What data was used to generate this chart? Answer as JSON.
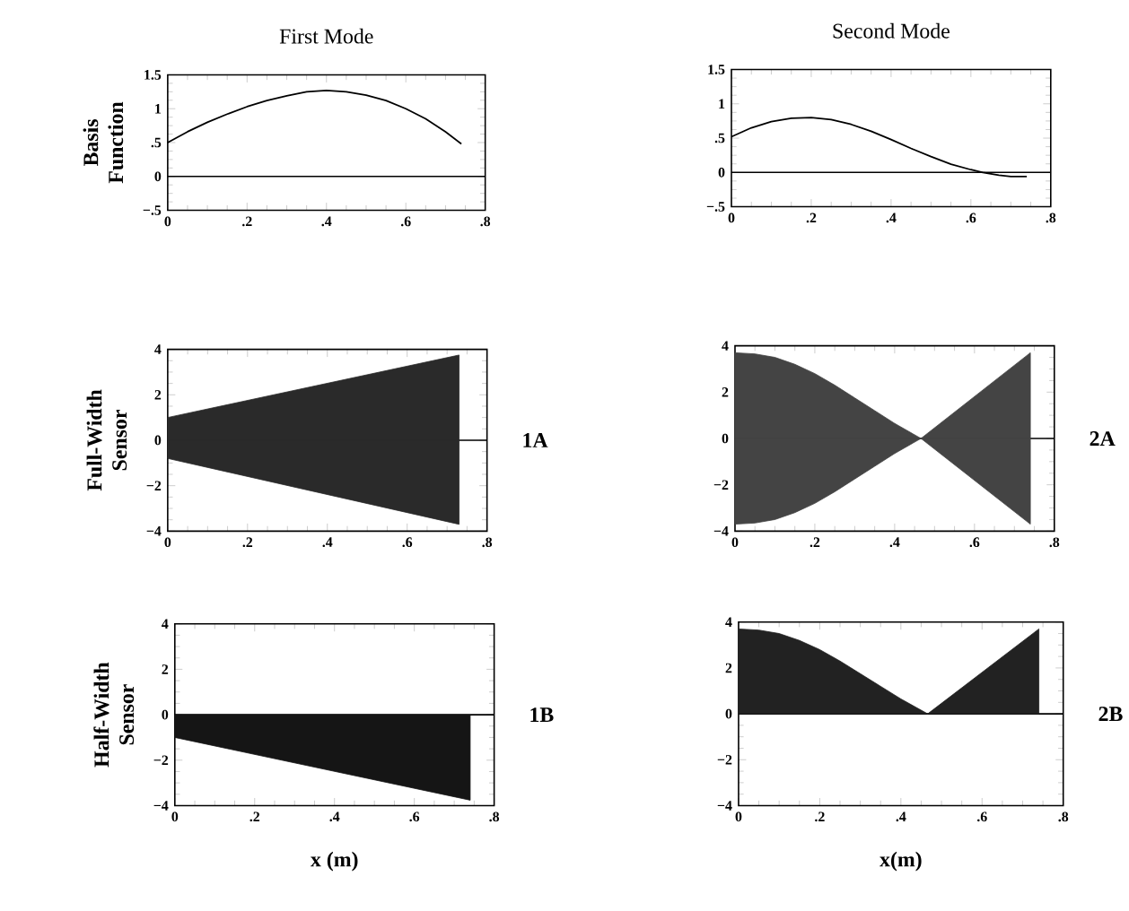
{
  "chart_data": [
    {
      "type": "line",
      "title": "First Mode",
      "ylabel": "Basis Function",
      "x": [
        0,
        0.05,
        0.1,
        0.15,
        0.2,
        0.25,
        0.3,
        0.35,
        0.4,
        0.45,
        0.5,
        0.55,
        0.6,
        0.65,
        0.7,
        0.74
      ],
      "series": [
        {
          "color": "#000000",
          "values": [
            0.5,
            0.66,
            0.8,
            0.92,
            1.03,
            1.12,
            1.19,
            1.25,
            1.27,
            1.25,
            1.2,
            1.12,
            1.0,
            0.85,
            0.66,
            0.48
          ]
        }
      ],
      "xlim": [
        0,
        0.8
      ],
      "ylim": [
        -0.5,
        1.5
      ],
      "xticks": [
        0,
        {
          "value": 0.2,
          "label": ".2"
        },
        {
          "value": 0.4,
          "label": ".4"
        },
        {
          "value": 0.6,
          "label": ".6"
        },
        {
          "value": 0.8,
          "label": ".8"
        }
      ],
      "yticks": [
        {
          "value": -0.5,
          "label": "−.5"
        },
        0,
        {
          "value": 0.5,
          "label": ".5"
        },
        1,
        1.5
      ],
      "ref_lines": [
        {
          "axis": "y",
          "value": 0
        }
      ]
    },
    {
      "type": "line",
      "title": "Second Mode",
      "x": [
        0,
        0.05,
        0.1,
        0.15,
        0.2,
        0.25,
        0.3,
        0.35,
        0.4,
        0.45,
        0.5,
        0.55,
        0.6,
        0.63,
        0.67,
        0.7,
        0.74
      ],
      "series": [
        {
          "color": "#000000",
          "values": [
            0.52,
            0.65,
            0.74,
            0.79,
            0.8,
            0.77,
            0.7,
            0.6,
            0.48,
            0.35,
            0.23,
            0.12,
            0.04,
            0,
            -0.04,
            -0.06,
            -0.06
          ]
        }
      ],
      "xlim": [
        0,
        0.8
      ],
      "ylim": [
        -0.5,
        1.5
      ],
      "xticks": [
        0,
        {
          "value": 0.2,
          "label": ".2"
        },
        {
          "value": 0.4,
          "label": ".4"
        },
        {
          "value": 0.6,
          "label": ".6"
        },
        {
          "value": 0.8,
          "label": ".8"
        }
      ],
      "yticks": [
        {
          "value": -0.5,
          "label": "−.5"
        },
        0,
        {
          "value": 0.5,
          "label": ".5"
        },
        1,
        1.5
      ],
      "ref_lines": [
        {
          "axis": "y",
          "value": 0
        }
      ]
    },
    {
      "type": "area",
      "ylabel": "Full-Width Sensor",
      "annotations": [
        "1A"
      ],
      "x": [
        0,
        0.73
      ],
      "series": [
        {
          "color": "#2a2a2a",
          "values": [
            1.0,
            3.75
          ]
        },
        {
          "color": "#2a2a2a",
          "values": [
            -0.8,
            -3.7
          ]
        }
      ],
      "xlim": [
        0,
        0.8
      ],
      "ylim": [
        -4,
        4
      ],
      "xticks": [
        0,
        {
          "value": 0.2,
          "label": ".2"
        },
        {
          "value": 0.4,
          "label": ".4"
        },
        {
          "value": 0.6,
          "label": ".6"
        },
        {
          "value": 0.8,
          "label": ".8"
        }
      ],
      "yticks": [
        {
          "value": -4,
          "label": "−4"
        },
        {
          "value": -2,
          "label": "−2"
        },
        0,
        2,
        4
      ],
      "ref_lines": [
        {
          "axis": "y",
          "value": 0
        }
      ]
    },
    {
      "type": "area",
      "annotations": [
        "2A"
      ],
      "x": [
        0,
        0.05,
        0.1,
        0.15,
        0.2,
        0.25,
        0.3,
        0.35,
        0.4,
        0.466,
        0.74
      ],
      "series": [
        {
          "color": "#444444",
          "values": [
            3.7,
            3.65,
            3.5,
            3.2,
            2.8,
            2.3,
            1.75,
            1.2,
            0.65,
            0,
            3.7
          ]
        },
        {
          "color": "#444444",
          "values": [
            -3.7,
            -3.65,
            -3.5,
            -3.2,
            -2.8,
            -2.3,
            -1.75,
            -1.2,
            -0.65,
            0,
            -3.7
          ]
        }
      ],
      "xlim": [
        0,
        0.8
      ],
      "ylim": [
        -4,
        4
      ],
      "xticks": [
        0,
        {
          "value": 0.2,
          "label": ".2"
        },
        {
          "value": 0.4,
          "label": ".4"
        },
        {
          "value": 0.6,
          "label": ".6"
        },
        {
          "value": 0.8,
          "label": ".8"
        }
      ],
      "yticks": [
        {
          "value": -4,
          "label": "−4"
        },
        {
          "value": -2,
          "label": "−2"
        },
        0,
        2,
        4
      ],
      "ref_lines": [
        {
          "axis": "y",
          "value": 0
        }
      ]
    },
    {
      "type": "area",
      "ylabel": "Half-Width Sensor",
      "xlabel": "x (m)",
      "annotations": [
        "1B"
      ],
      "x": [
        0,
        0.74
      ],
      "series": [
        {
          "color": "#151515",
          "values": [
            -1.0,
            -3.76
          ]
        }
      ],
      "xlim": [
        0,
        0.8
      ],
      "ylim": [
        -4,
        4
      ],
      "xticks": [
        0,
        {
          "value": 0.2,
          "label": ".2"
        },
        {
          "value": 0.4,
          "label": ".4"
        },
        {
          "value": 0.6,
          "label": ".6"
        },
        {
          "value": 0.8,
          "label": ".8"
        }
      ],
      "yticks": [
        {
          "value": -4,
          "label": "−4"
        },
        {
          "value": -2,
          "label": "−2"
        },
        0,
        2,
        4
      ],
      "ref_lines": [
        {
          "axis": "y",
          "value": 0
        }
      ]
    },
    {
      "type": "area",
      "xlabel": "x(m)",
      "annotations": [
        "2B"
      ],
      "x": [
        0,
        0.05,
        0.1,
        0.15,
        0.2,
        0.25,
        0.3,
        0.35,
        0.4,
        0.466,
        0.74
      ],
      "series": [
        {
          "color": "#222222",
          "values": [
            3.7,
            3.65,
            3.5,
            3.2,
            2.8,
            2.3,
            1.75,
            1.2,
            0.65,
            0,
            3.7
          ]
        }
      ],
      "xlim": [
        0,
        0.8
      ],
      "ylim": [
        -4,
        4
      ],
      "xticks": [
        0,
        {
          "value": 0.2,
          "label": ".2"
        },
        {
          "value": 0.4,
          "label": ".4"
        },
        {
          "value": 0.6,
          "label": ".6"
        },
        {
          "value": 0.8,
          "label": ".8"
        }
      ],
      "yticks": [
        {
          "value": -4,
          "label": "−4"
        },
        {
          "value": -2,
          "label": "−2"
        },
        0,
        2,
        4
      ],
      "ref_lines": [
        {
          "axis": "y",
          "value": 0
        }
      ]
    }
  ]
}
